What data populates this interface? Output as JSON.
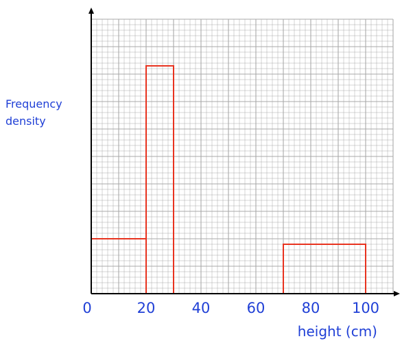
{
  "chart_data": {
    "type": "histogram",
    "xlabel": "height (cm)",
    "ylabel_lines": [
      "Frequency",
      "density"
    ],
    "x_ticks": [
      "0",
      "20",
      "40",
      "60",
      "80",
      "100"
    ],
    "xlim": [
      0,
      110
    ],
    "y_axis_numbered": false,
    "y_units": "large grid squares (unlabelled)",
    "ylim": [
      0,
      8.3
    ],
    "grid": true,
    "bars": [
      {
        "x_start": 0,
        "x_end": 20,
        "height": 2.0,
        "filled": false
      },
      {
        "x_start": 20,
        "x_end": 30,
        "height": 8.4,
        "filled": true
      },
      {
        "x_start": 70,
        "x_end": 100,
        "height": 1.8,
        "filled": true
      }
    ],
    "colors": {
      "grid": "#a9a9a9",
      "axis": "#000000",
      "bars": "#e8321e",
      "labels": "#1f3fd6"
    }
  }
}
